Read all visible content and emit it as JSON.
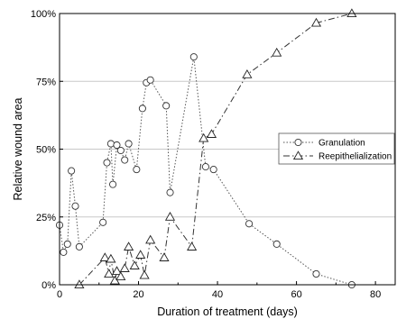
{
  "chart_data": {
    "type": "line",
    "xlabel": "Duration of treatment (days)",
    "ylabel": "Relative wound area",
    "xlim": [
      0,
      85
    ],
    "ylim": [
      0,
      100
    ],
    "x_ticks": [
      0,
      20,
      40,
      60,
      80
    ],
    "x_tick_labels": [
      "0",
      "20",
      "40",
      "60",
      "80"
    ],
    "y_ticks": [
      0,
      25,
      50,
      75,
      100
    ],
    "y_tick_labels": [
      "0%",
      "25%",
      "50%",
      "75%",
      "100%"
    ],
    "grid": "horizontal at 25%, 50%, 75%",
    "legend_position": "right, middle",
    "series": [
      {
        "name": "Granulation",
        "marker": "circle",
        "line_style": "dotted",
        "color": "#555555",
        "x": [
          0,
          1,
          2,
          3,
          4,
          5,
          11,
          12,
          13,
          13.5,
          14.5,
          15.5,
          16.5,
          17.5,
          19.5,
          21,
          22,
          23,
          27,
          28,
          34,
          37,
          39,
          48,
          55,
          65,
          74
        ],
        "y": [
          22,
          12,
          15,
          42,
          29,
          14,
          23,
          45,
          52,
          37,
          51.5,
          49.5,
          46,
          52,
          42.5,
          65,
          74.5,
          75.5,
          66,
          34,
          84,
          43.5,
          42.5,
          22.5,
          15,
          4,
          0
        ]
      },
      {
        "name": "Reepithelialization",
        "marker": "triangle",
        "line_style": "dash-dot",
        "color": "#333333",
        "x": [
          5,
          11.5,
          12.5,
          13,
          14,
          14.5,
          15.5,
          16.5,
          17.5,
          19,
          20.5,
          21.5,
          23,
          26.5,
          28,
          33.5,
          36.5,
          38.5,
          47.5,
          55,
          65,
          74
        ],
        "y": [
          0,
          10,
          4,
          9.5,
          1.5,
          5,
          3,
          6,
          14,
          7,
          11,
          3.5,
          16.5,
          10,
          25,
          14,
          54,
          55.5,
          77.5,
          85.5,
          96.5,
          100
        ]
      }
    ]
  }
}
